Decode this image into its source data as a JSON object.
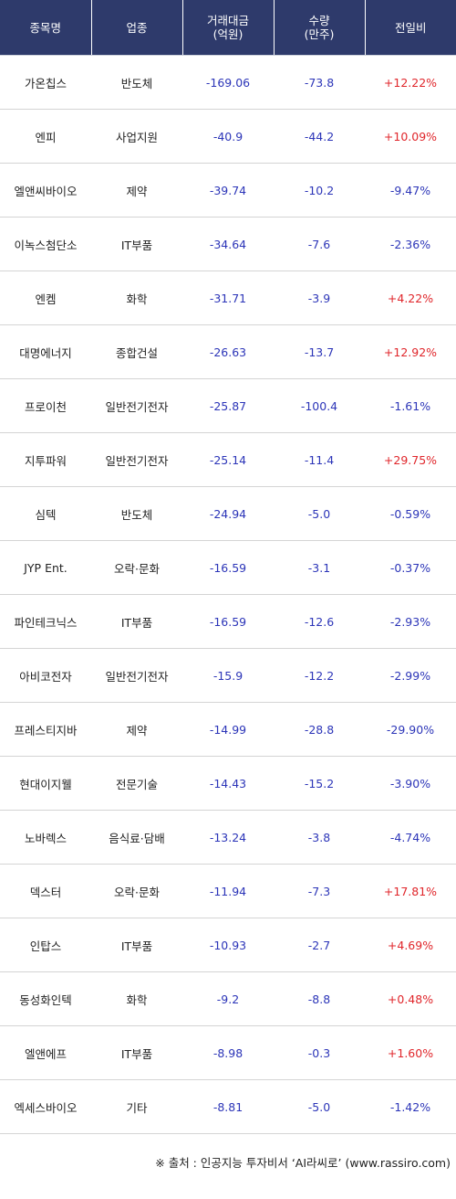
{
  "header": {
    "col_name": "종목명",
    "col_sector": "업종",
    "col_amount_line1": "거래대금",
    "col_amount_line2": "(억원)",
    "col_volume_line1": "수량",
    "col_volume_line2": "(만주)",
    "col_change": "전일비"
  },
  "rows": [
    {
      "name": "가온칩스",
      "sector": "반도체",
      "amount": "-169.06",
      "volume": "-73.8",
      "change": "+12.22%"
    },
    {
      "name": "엔피",
      "sector": "사업지원",
      "amount": "-40.9",
      "volume": "-44.2",
      "change": "+10.09%"
    },
    {
      "name": "엘앤씨바이오",
      "sector": "제약",
      "amount": "-39.74",
      "volume": "-10.2",
      "change": "-9.47%"
    },
    {
      "name": "이녹스첨단소",
      "sector": "IT부품",
      "amount": "-34.64",
      "volume": "-7.6",
      "change": "-2.36%"
    },
    {
      "name": "엔켐",
      "sector": "화학",
      "amount": "-31.71",
      "volume": "-3.9",
      "change": "+4.22%"
    },
    {
      "name": "대명에너지",
      "sector": "종합건설",
      "amount": "-26.63",
      "volume": "-13.7",
      "change": "+12.92%"
    },
    {
      "name": "프로이천",
      "sector": "일반전기전자",
      "amount": "-25.87",
      "volume": "-100.4",
      "change": "-1.61%"
    },
    {
      "name": "지투파워",
      "sector": "일반전기전자",
      "amount": "-25.14",
      "volume": "-11.4",
      "change": "+29.75%"
    },
    {
      "name": "심텍",
      "sector": "반도체",
      "amount": "-24.94",
      "volume": "-5.0",
      "change": "-0.59%"
    },
    {
      "name": "JYP Ent.",
      "sector": "오락·문화",
      "amount": "-16.59",
      "volume": "-3.1",
      "change": "-0.37%"
    },
    {
      "name": "파인테크닉스",
      "sector": "IT부품",
      "amount": "-16.59",
      "volume": "-12.6",
      "change": "-2.93%"
    },
    {
      "name": "아비코전자",
      "sector": "일반전기전자",
      "amount": "-15.9",
      "volume": "-12.2",
      "change": "-2.99%"
    },
    {
      "name": "프레스티지바",
      "sector": "제약",
      "amount": "-14.99",
      "volume": "-28.8",
      "change": "-29.90%"
    },
    {
      "name": "현대이지웰",
      "sector": "전문기술",
      "amount": "-14.43",
      "volume": "-15.2",
      "change": "-3.90%"
    },
    {
      "name": "노바렉스",
      "sector": "음식료·담배",
      "amount": "-13.24",
      "volume": "-3.8",
      "change": "-4.74%"
    },
    {
      "name": "덱스터",
      "sector": "오락·문화",
      "amount": "-11.94",
      "volume": "-7.3",
      "change": "+17.81%"
    },
    {
      "name": "인탑스",
      "sector": "IT부품",
      "amount": "-10.93",
      "volume": "-2.7",
      "change": "+4.69%"
    },
    {
      "name": "동성화인텍",
      "sector": "화학",
      "amount": "-9.2",
      "volume": "-8.8",
      "change": "+0.48%"
    },
    {
      "name": "엘앤에프",
      "sector": "IT부품",
      "amount": "-8.98",
      "volume": "-0.3",
      "change": "+1.60%"
    },
    {
      "name": "엑세스바이오",
      "sector": "기타",
      "amount": "-8.81",
      "volume": "-5.0",
      "change": "-1.42%"
    }
  ],
  "footer": {
    "source": "※ 출처 : 인공지능 투자비서 ‘AI라씨로’ (www.rassiro.com)"
  },
  "colors": {
    "header_bg": "#2e3a6b",
    "up": "#e0262b",
    "down": "#2c35b8"
  }
}
